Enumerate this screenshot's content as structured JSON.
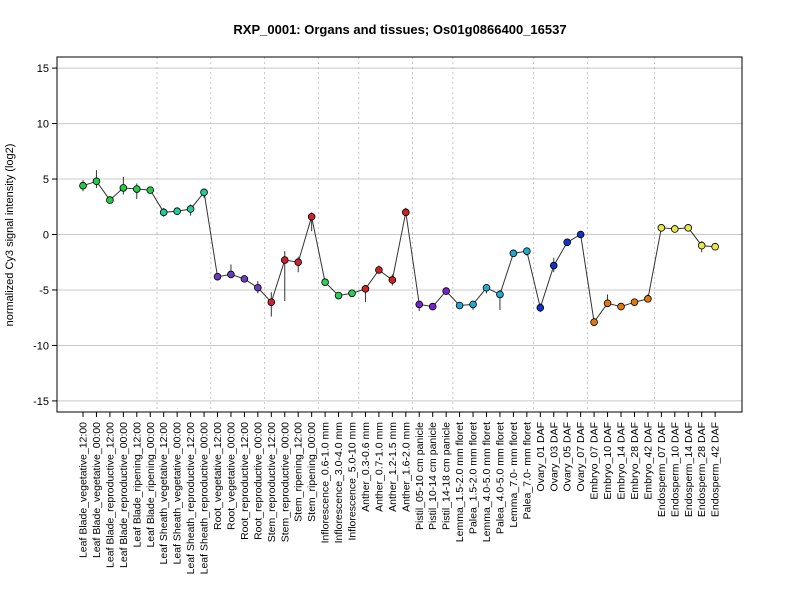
{
  "chart_data": {
    "type": "line",
    "title": "RXP_0001: Organs and tissues; Os01g0866400_16537",
    "xlabel": "",
    "ylabel": "normalized Cy3 signal intensity (log2)",
    "ylim": [
      -16,
      16
    ],
    "yticks": [
      -15,
      -10,
      -5,
      0,
      5,
      10,
      15
    ],
    "grid": true,
    "categories": [
      "Leaf Blade_vegetative_12:00",
      "Leaf Blade_vegetative_00:00",
      "Leaf Blade_reproductive_12:00",
      "Leaf Blade_reproductive_00:00",
      "Leaf Blade_ripening_12:00",
      "Leaf Blade_ripening_00:00",
      "Leaf Sheath_vegetative_12:00",
      "Leaf Sheath_vegetative_00:00",
      "Leaf Sheath_reproductive_12:00",
      "Leaf Sheath_reproductive_00:00",
      "Root_vegetative_12:00",
      "Root_vegetative_00:00",
      "Root_reproductive_12:00",
      "Root_reproductive_00:00",
      "Stem_reproductive_12:00",
      "Stem_reproductive_00:00",
      "Stem_ripening_12:00",
      "Stem_ripening_00:00",
      "Inflorescence_0.6-1.0 mm",
      "Inflorescence_3.0-4.0 mm",
      "Inflorescence_5.0-10 mm",
      "Anther_0.3-0.6 mm",
      "Anther_0.7-1.0 mm",
      "Anther_1.2-1.5 mm",
      "Anther_1.6-2.0 mm",
      "Pistil_05-10 cm panicle",
      "Pistil_10-14 cm panicle",
      "Pistil_14-18 cm panicle",
      "Lemma_1.5-2.0 mm floret",
      "Palea_1.5-2.0 mm floret",
      "Lemma_4.0-5.0 mm floret",
      "Palea_4.0-5.0 mm floret",
      "Lemma_7.0- mm floret",
      "Palea_7.0- mm floret",
      "Ovary_01 DAF",
      "Ovary_03 DAF",
      "Ovary_05 DAF",
      "Ovary_07 DAF",
      "Embryo_07 DAF",
      "Embryo_10 DAF",
      "Embryo_14 DAF",
      "Embryo_28 DAF",
      "Embryo_42 DAF",
      "Endosperm_07 DAF",
      "Endosperm_10 DAF",
      "Endosperm_14 DAF",
      "Endosperm_28 DAF",
      "Endosperm_42 DAF"
    ],
    "values": [
      4.4,
      4.8,
      3.1,
      4.2,
      4.1,
      4.0,
      2.0,
      2.1,
      2.3,
      3.8,
      -3.8,
      -3.6,
      -4.0,
      -4.8,
      -6.1,
      -2.3,
      -2.5,
      1.6,
      -4.3,
      -5.5,
      -5.3,
      -4.9,
      -3.2,
      -4.1,
      2.0,
      -6.3,
      -6.5,
      -5.1,
      -6.4,
      -6.3,
      -4.8,
      -5.4,
      -1.7,
      -1.5,
      -6.6,
      -2.8,
      -0.7,
      0.0,
      -7.9,
      -6.2,
      -6.5,
      -6.1,
      -5.8,
      0.6,
      0.5,
      0.6,
      -1.0,
      -1.1
    ],
    "error_low": [
      3.9,
      4.2,
      3.0,
      3.6,
      3.2,
      3.7,
      1.6,
      1.9,
      1.7,
      3.3,
      -3.9,
      -3.8,
      -4.1,
      -5.3,
      -7.4,
      -6.0,
      -3.4,
      0.3,
      -4.5,
      -5.8,
      -5.5,
      -6.1,
      -3.5,
      -4.6,
      1.7,
      -6.9,
      -6.8,
      -5.4,
      -6.6,
      -6.8,
      -5.3,
      -6.8,
      -1.9,
      -1.9,
      -7.0,
      -3.4,
      -1.0,
      -0.2,
      -8.2,
      -6.5,
      -6.7,
      -6.3,
      -6.1,
      0.3,
      0.3,
      0.3,
      -1.6,
      -1.4
    ],
    "error_high": [
      4.9,
      5.8,
      3.3,
      5.2,
      4.6,
      4.2,
      2.4,
      2.4,
      2.7,
      4.1,
      -3.6,
      -2.7,
      -3.8,
      -4.2,
      -5.2,
      -1.5,
      -2.0,
      2.0,
      -4.1,
      -5.2,
      -5.0,
      -4.6,
      -2.8,
      -3.6,
      2.4,
      -6.1,
      -6.2,
      -4.8,
      -6.1,
      -6.0,
      -4.5,
      -5.0,
      -1.4,
      -1.2,
      -6.2,
      -2.1,
      -0.5,
      0.3,
      -7.5,
      -5.4,
      -6.2,
      -5.8,
      -5.4,
      0.9,
      0.8,
      0.9,
      -0.6,
      -0.8
    ],
    "group_colors": [
      "#22cc44",
      "#22cc99",
      "#6a3dbd",
      "#cc2233",
      "#2ecc5a",
      "#cc2222",
      "#7722cc",
      "#22aacc",
      "#1133cc",
      "#e07810",
      "#e6e64d"
    ],
    "point_colors": [
      "#22cc44",
      "#22cc44",
      "#22cc44",
      "#22cc44",
      "#22cc44",
      "#22cc44",
      "#22cc99",
      "#22cc99",
      "#22cc99",
      "#22cc99",
      "#6a3dbd",
      "#6a3dbd",
      "#6a3dbd",
      "#6a3dbd",
      "#cc2233",
      "#cc2233",
      "#cc2233",
      "#cc2233",
      "#2ecc5a",
      "#2ecc5a",
      "#2ecc5a",
      "#cc2222",
      "#cc2222",
      "#cc2222",
      "#cc2222",
      "#7722cc",
      "#7722cc",
      "#7722cc",
      "#22aacc",
      "#22aacc",
      "#22aacc",
      "#22aacc",
      "#22aacc",
      "#22aacc",
      "#1133cc",
      "#1133cc",
      "#1133cc",
      "#1133cc",
      "#e07810",
      "#e07810",
      "#e07810",
      "#e07810",
      "#e07810",
      "#e6e64d",
      "#e6e64d",
      "#e6e64d",
      "#e6e64d",
      "#e6e64d"
    ],
    "group_starts": [
      0,
      6,
      10,
      14,
      18,
      21,
      25,
      28,
      34,
      38,
      43
    ],
    "line_color": "#333333",
    "grid_color": "#c8c8c8"
  }
}
